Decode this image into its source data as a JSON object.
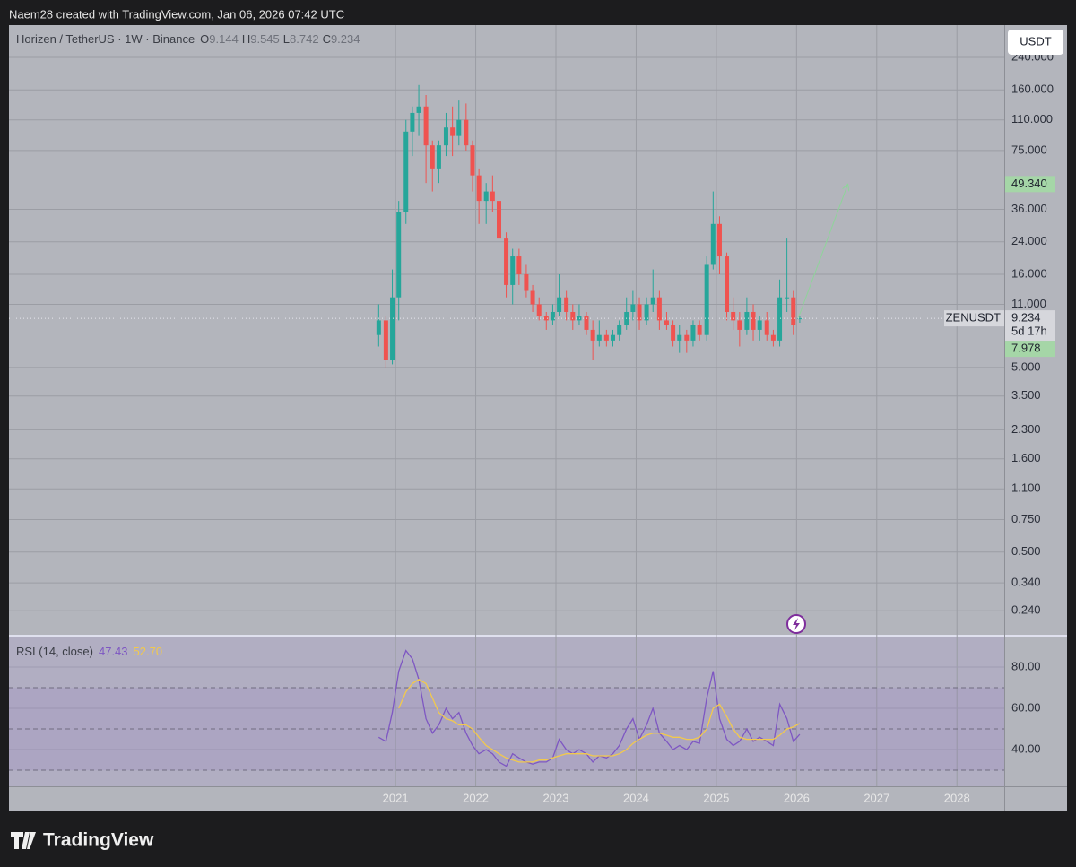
{
  "header": {
    "credit": "Naem28 created with TradingView.com, Jan 06, 2026 07:42 UTC",
    "currency": "USDT",
    "brand": "TradingView"
  },
  "chart_data": [
    {
      "type": "candlestick",
      "title": "Horizen / TetherUS · 1W · Binance",
      "ohlc_legend": [
        {
          "key": "O",
          "label": "9.144"
        },
        {
          "key": "H",
          "label": "9.545"
        },
        {
          "key": "L",
          "label": "8.742"
        },
        {
          "key": "C",
          "label": "9.234"
        }
      ],
      "log_scale": true,
      "grid": true,
      "up_color": "#26a69a",
      "down_color": "#ef5350",
      "x": [
        2020.79,
        2020.88,
        2020.96,
        2021.04,
        2021.13,
        2021.21,
        2021.29,
        2021.38,
        2021.46,
        2021.54,
        2021.63,
        2021.71,
        2021.79,
        2021.88,
        2021.96,
        2022.04,
        2022.13,
        2022.21,
        2022.29,
        2022.38,
        2022.46,
        2022.54,
        2022.63,
        2022.71,
        2022.79,
        2022.88,
        2022.96,
        2023.04,
        2023.13,
        2023.21,
        2023.29,
        2023.38,
        2023.46,
        2023.54,
        2023.63,
        2023.71,
        2023.79,
        2023.88,
        2023.96,
        2024.04,
        2024.13,
        2024.21,
        2024.29,
        2024.38,
        2024.46,
        2024.54,
        2024.63,
        2024.71,
        2024.79,
        2024.88,
        2024.96,
        2025.04,
        2025.13,
        2025.21,
        2025.29,
        2025.38,
        2025.46,
        2025.54,
        2025.63,
        2025.71,
        2025.79,
        2025.88,
        2025.96,
        2026.04
      ],
      "open": [
        7.5,
        9,
        5.5,
        12,
        35,
        95,
        120,
        130,
        80,
        60,
        80,
        100,
        90,
        110,
        80,
        55,
        40,
        45,
        40,
        25,
        14,
        20,
        16,
        13,
        11,
        9.5,
        9,
        10,
        12,
        10,
        9,
        9.5,
        8,
        7,
        7.5,
        7,
        7.5,
        8.5,
        10,
        11,
        9,
        11,
        12,
        9,
        8.5,
        7,
        7.5,
        7,
        8.5,
        7.5,
        18,
        30,
        20,
        10,
        9,
        8,
        10,
        8,
        9,
        7.5,
        7,
        12,
        12,
        9.144
      ],
      "high": [
        11,
        9.5,
        17,
        40,
        110,
        130,
        170,
        150,
        85,
        85,
        120,
        130,
        140,
        135,
        85,
        60,
        50,
        55,
        45,
        27,
        22,
        22,
        18,
        14,
        12,
        10,
        11,
        16,
        13,
        11,
        11,
        10,
        9,
        9,
        8,
        8,
        9,
        12,
        13,
        12,
        12,
        17,
        13,
        10,
        9,
        8.5,
        8,
        9,
        9,
        20,
        45,
        33,
        21,
        12,
        10,
        12,
        11,
        9.5,
        10,
        8,
        15,
        25,
        13,
        9.545
      ],
      "low": [
        6.5,
        5,
        5.2,
        9,
        30,
        70,
        90,
        50,
        45,
        50,
        70,
        70,
        80,
        75,
        45,
        30,
        30,
        35,
        22,
        12,
        11,
        14,
        12,
        10,
        9,
        8,
        8.5,
        9.5,
        9,
        8,
        8.5,
        7.5,
        5.5,
        6.5,
        6.5,
        6.5,
        7,
        8,
        9,
        8,
        8.5,
        10,
        8,
        8,
        6.5,
        6,
        6,
        6.5,
        7,
        7,
        17,
        16,
        9,
        8,
        6.5,
        7.5,
        7,
        7,
        7,
        6.5,
        6.5,
        10,
        7.5,
        8.742
      ],
      "close": [
        9,
        5.5,
        12,
        35,
        95,
        120,
        130,
        80,
        60,
        80,
        100,
        90,
        110,
        80,
        55,
        40,
        45,
        40,
        25,
        14,
        20,
        16,
        13,
        11,
        9.5,
        9,
        10,
        12,
        10,
        9,
        9.5,
        8,
        7,
        7.5,
        7,
        7.5,
        8.5,
        10,
        11,
        9,
        11,
        12,
        9,
        8.5,
        7,
        7.5,
        7,
        8.5,
        7.5,
        18,
        30,
        20,
        10,
        9,
        8,
        10,
        8,
        9,
        7.5,
        7,
        12,
        12,
        8.5,
        9.234
      ],
      "xlim": [
        2016.18,
        2028.59
      ],
      "xticks": [
        2021,
        2022,
        2023,
        2024,
        2025,
        2026,
        2027,
        2028
      ],
      "ylim": [
        0.178,
        359
      ],
      "yticks": [
        {
          "value": 240,
          "label": "240.000"
        },
        {
          "value": 160,
          "label": "160.000"
        },
        {
          "value": 110,
          "label": "110.000"
        },
        {
          "value": 75,
          "label": "75.000"
        },
        {
          "value": 36,
          "label": "36.000"
        },
        {
          "value": 24,
          "label": "24.000"
        },
        {
          "value": 16,
          "label": "16.000"
        },
        {
          "value": 11,
          "label": "11.000"
        },
        {
          "value": 5,
          "label": "5.000"
        },
        {
          "value": 3.5,
          "label": "3.500"
        },
        {
          "value": 2.3,
          "label": "2.300"
        },
        {
          "value": 1.6,
          "label": "1.600"
        },
        {
          "value": 1.1,
          "label": "1.100"
        },
        {
          "value": 0.75,
          "label": "0.750"
        },
        {
          "value": 0.5,
          "label": "0.500"
        },
        {
          "value": 0.34,
          "label": "0.340"
        },
        {
          "value": 0.24,
          "label": "0.240"
        }
      ],
      "last": {
        "symbol": "ZENUSDT",
        "value": 9.234,
        "countdown": "5d 17h"
      },
      "price_labels": [
        {
          "value": 49.34,
          "label": "49.340"
        },
        {
          "value": 7.978,
          "label": "7.978"
        }
      ],
      "arrow": {
        "x": [
          2026.02,
          2026.64
        ],
        "y": [
          9.234,
          49.34
        ],
        "color": "#8fd49a"
      }
    },
    {
      "type": "line",
      "title": "RSI (14, close)",
      "legend_values": [
        "47.43",
        "52.70"
      ],
      "x": [
        2020.79,
        2020.88,
        2020.96,
        2021.04,
        2021.13,
        2021.21,
        2021.29,
        2021.38,
        2021.46,
        2021.54,
        2021.63,
        2021.71,
        2021.79,
        2021.88,
        2021.96,
        2022.04,
        2022.13,
        2022.21,
        2022.29,
        2022.38,
        2022.46,
        2022.54,
        2022.63,
        2022.71,
        2022.79,
        2022.88,
        2022.96,
        2023.04,
        2023.13,
        2023.21,
        2023.29,
        2023.38,
        2023.46,
        2023.54,
        2023.63,
        2023.71,
        2023.79,
        2023.88,
        2023.96,
        2024.04,
        2024.13,
        2024.21,
        2024.29,
        2024.38,
        2024.46,
        2024.54,
        2024.63,
        2024.71,
        2024.79,
        2024.88,
        2024.96,
        2025.04,
        2025.13,
        2025.21,
        2025.29,
        2025.38,
        2025.46,
        2025.54,
        2025.63,
        2025.71,
        2025.79,
        2025.88,
        2025.96,
        2026.04
      ],
      "series": [
        {
          "color": "#7e57c2",
          "values": [
            46,
            44,
            58,
            78,
            88,
            84,
            74,
            55,
            48,
            52,
            60,
            55,
            58,
            48,
            42,
            38,
            40,
            38,
            34,
            32,
            38,
            36,
            34,
            33,
            34,
            34,
            36,
            45,
            40,
            38,
            40,
            38,
            34,
            37,
            36,
            38,
            42,
            50,
            55,
            45,
            52,
            60,
            48,
            44,
            40,
            42,
            40,
            44,
            43,
            65,
            78,
            55,
            45,
            42,
            44,
            50,
            44,
            46,
            44,
            42,
            62,
            55,
            44,
            47.43
          ]
        },
        {
          "color": "#f2c94c",
          "values": [
            null,
            null,
            null,
            60,
            68,
            72,
            74,
            72,
            65,
            58,
            55,
            54,
            52,
            52,
            50,
            46,
            42,
            40,
            38,
            36,
            35,
            34,
            34,
            34,
            35,
            35,
            36,
            37,
            38,
            38,
            38,
            38,
            37,
            37,
            37,
            37,
            38,
            40,
            43,
            45,
            47,
            48,
            48,
            47,
            46,
            46,
            45,
            45,
            46,
            50,
            60,
            62,
            56,
            50,
            46,
            45,
            45,
            45,
            45,
            45,
            47,
            50,
            51,
            52.7
          ]
        }
      ],
      "ylim": [
        22.2,
        94.8
      ],
      "yticks": [
        {
          "value": 80,
          "label": "80.00"
        },
        {
          "value": 60,
          "label": "60.00"
        },
        {
          "value": 40,
          "label": "40.00"
        }
      ],
      "levels": [
        70,
        50,
        30
      ]
    }
  ]
}
